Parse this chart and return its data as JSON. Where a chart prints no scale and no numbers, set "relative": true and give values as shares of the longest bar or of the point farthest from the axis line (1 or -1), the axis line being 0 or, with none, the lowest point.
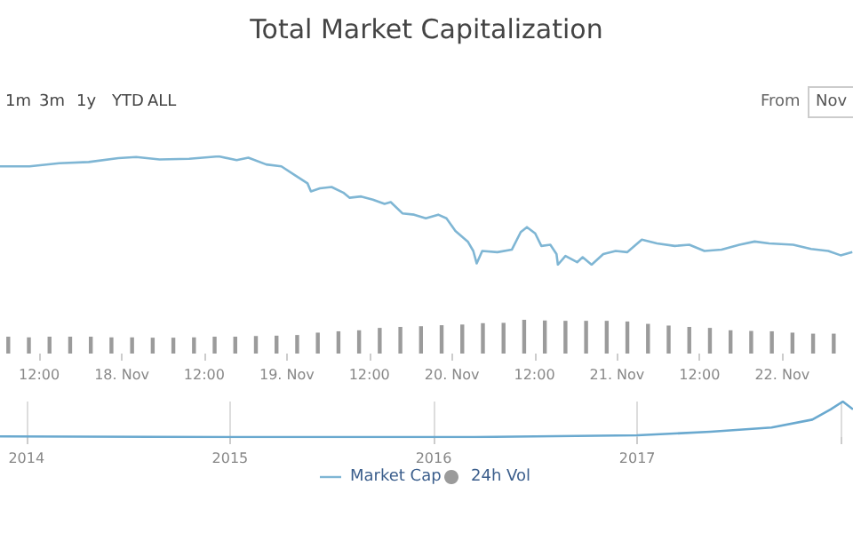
{
  "chart_data": [
    {
      "type": "line",
      "title": "Total Market Capitalization",
      "annotations": [
        "1m",
        "3m",
        "1y",
        "YTD",
        "ALL",
        "From",
        "Nov"
      ],
      "relative": true,
      "tick_labels": false,
      "xlim": [
        "--11-17T06:18",
        "--11-22T10:18"
      ],
      "legend": "bottom",
      "marker": "none",
      "series": [
        {
          "name": "Market Cap",
          "color": "#7fb6d4",
          "x": [
            "--11-17T06:18",
            "--11-17T10:36",
            "--11-17T14:54",
            "--11-17T19:12",
            "--11-17T23:30",
            "--11-18T02:06",
            "--11-18T05:30",
            "--11-18T09:48",
            "--11-18T14:06",
            "--11-18T16:42",
            "--11-18T18:24",
            "--11-18T21:00",
            "--11-18T23:12",
            "--11-19T01:18",
            "--11-19T03:00",
            "--11-19T03:30",
            "--11-19T04:48",
            "--11-19T06:30",
            "--11-19T08:12",
            "--11-19T09:06",
            "--11-19T10:48",
            "--11-19T12:30",
            "--11-19T14:12",
            "--11-19T15:06",
            "--11-19T16:48",
            "--11-19T18:30",
            "--11-19T20:12",
            "--11-19T22:00",
            "--11-19T23:12",
            "--11-20T00:30",
            "--11-20T02:18",
            "--11-20T03:06",
            "--11-20T03:36",
            "--11-20T04:24",
            "--11-20T06:36",
            "--11-20T08:42",
            "--11-20T10:00",
            "--11-20T10:54",
            "--11-20T12:06",
            "--11-20T13:00",
            "--11-20T14:18",
            "--11-20T15:12",
            "--11-20T15:24",
            "--11-20T16:30",
            "--11-20T18:12",
            "--11-20T19:00",
            "--11-20T20:18",
            "--11-20T22:00",
            "--11-20T23:48",
            "--11-21T01:30",
            "--11-21T03:36",
            "--11-21T05:48",
            "--11-21T08:24",
            "--11-21T10:30",
            "--11-21T12:42",
            "--11-21T15:12",
            "--11-21T17:48",
            "--11-21T20:00",
            "--11-21T22:06",
            "--11-22T01:36",
            "--11-22T04:12",
            "--11-22T06:42",
            "--11-22T08:30",
            "--11-22T10:12"
          ],
          "values": [
            0.908,
            0.908,
            0.936,
            0.948,
            0.983,
            0.994,
            0.971,
            0.977,
            1.0,
            0.965,
            0.988,
            0.925,
            0.908,
            0.821,
            0.751,
            0.676,
            0.705,
            0.717,
            0.665,
            0.618,
            0.63,
            0.601,
            0.561,
            0.578,
            0.474,
            0.462,
            0.428,
            0.462,
            0.428,
            0.312,
            0.214,
            0.127,
            0.012,
            0.127,
            0.116,
            0.139,
            0.301,
            0.347,
            0.289,
            0.173,
            0.185,
            0.098,
            0,
            0.081,
            0.023,
            0.069,
            0,
            0.098,
            0.127,
            0.116,
            0.231,
            0.197,
            0.173,
            0.185,
            0.127,
            0.139,
            0.185,
            0.214,
            0.197,
            0.185,
            0.145,
            0.127,
            0.087,
            0.116
          ]
        }
      ]
    },
    {
      "type": "bar",
      "relative": true,
      "tick_labels": "x",
      "legend": "bottom",
      "xlim": [
        "--11-17T06:18",
        "--11-22T10:18"
      ],
      "xticks": [
        {
          "value": "--11-17T12:00",
          "label": "12:00"
        },
        {
          "value": "--11-18",
          "label": "18. Nov"
        },
        {
          "value": "--11-18T12:00",
          "label": "12:00"
        },
        {
          "value": "--11-19",
          "label": "19. Nov"
        },
        {
          "value": "--11-19T12:00",
          "label": "12:00"
        },
        {
          "value": "--11-20",
          "label": "20. Nov"
        },
        {
          "value": "--11-20T12:00",
          "label": "12:00"
        },
        {
          "value": "--11-21",
          "label": "21. Nov"
        },
        {
          "value": "--11-21T12:00",
          "label": "12:00"
        },
        {
          "value": "--11-22",
          "label": "22. Nov"
        }
      ],
      "series": [
        {
          "name": "24h Vol",
          "color": "#9b9b9b",
          "x": [
            "--11-17T07:30",
            "--11-17T10:30",
            "--11-17T13:30",
            "--11-17T16:30",
            "--11-17T19:30",
            "--11-17T22:30",
            "--11-18T01:30",
            "--11-18T04:30",
            "--11-18T07:30",
            "--11-18T10:30",
            "--11-18T13:30",
            "--11-18T16:30",
            "--11-18T19:30",
            "--11-18T22:30",
            "--11-19T01:30",
            "--11-19T04:30",
            "--11-19T07:30",
            "--11-19T10:30",
            "--11-19T13:30",
            "--11-19T16:30",
            "--11-19T19:30",
            "--11-19T22:30",
            "--11-20T01:30",
            "--11-20T04:30",
            "--11-20T07:30",
            "--11-20T10:30",
            "--11-20T13:30",
            "--11-20T16:30",
            "--11-20T19:30",
            "--11-20T22:30",
            "--11-21T01:30",
            "--11-21T04:30",
            "--11-21T07:30",
            "--11-21T10:30",
            "--11-21T13:30",
            "--11-21T16:30",
            "--11-21T19:30",
            "--11-21T22:30",
            "--11-22T01:30",
            "--11-22T04:30",
            "--11-22T07:30"
          ],
          "values": [
            0.5,
            0.48,
            0.5,
            0.5,
            0.5,
            0.48,
            0.48,
            0.47,
            0.47,
            0.48,
            0.5,
            0.5,
            0.52,
            0.53,
            0.55,
            0.62,
            0.66,
            0.69,
            0.76,
            0.79,
            0.81,
            0.84,
            0.86,
            0.9,
            0.91,
            1.0,
            0.98,
            0.97,
            0.97,
            0.97,
            0.95,
            0.88,
            0.83,
            0.79,
            0.76,
            0.69,
            0.67,
            0.66,
            0.62,
            0.59,
            0.59
          ]
        }
      ]
    },
    {
      "type": "line",
      "relative": true,
      "tick_labels": "x",
      "grid": "x",
      "marker": "none",
      "xlim": [
        2013.87,
        2018.06
      ],
      "xticks": [
        2014,
        2015,
        2016,
        2017,
        {
          "value": 2018,
          "label": null
        }
      ],
      "series": [
        {
          "color": "#6aa9cf",
          "x": [
            2013.87,
            2015.03,
            2016.2,
            2017.0,
            2017.36,
            2017.66,
            2017.86,
            2017.95,
            2018.01,
            2018.06
          ],
          "values": [
            0.02,
            0,
            0,
            0.05,
            0.15,
            0.27,
            0.49,
            0.78,
            1.0,
            0.78
          ]
        }
      ]
    }
  ]
}
